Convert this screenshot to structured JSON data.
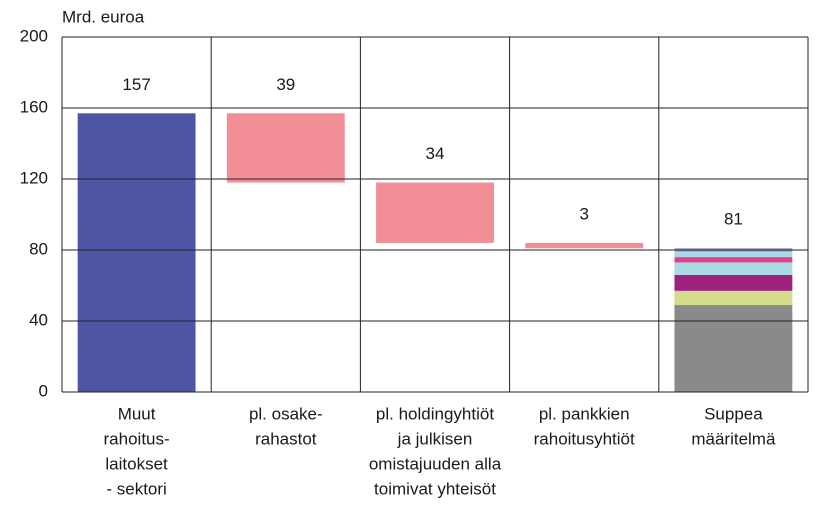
{
  "chart_data": {
    "type": "waterfall",
    "y_label": "Mrd. euroa",
    "categories": [
      [
        "Muut",
        "rahoitus-",
        "laitokset",
        "- sektori"
      ],
      [
        "pl. osake-",
        "rahastot"
      ],
      [
        "pl. holdingyhtiöt",
        "ja julkisen",
        "omistajuuden alla",
        "toimivat yhteisöt"
      ],
      [
        "pl. pankkien",
        "rahoitusyhtiöt"
      ],
      [
        "Suppea",
        "määritelmä"
      ]
    ],
    "values": [
      157,
      39,
      34,
      3,
      81
    ],
    "steps": [
      "total",
      "decrease",
      "decrease",
      "decrease",
      "total"
    ],
    "colors": {
      "total": "#4f55a5",
      "decrease": "#f28e96"
    },
    "segments": [
      {
        "color": "#8a8a8a",
        "value": 49
      },
      {
        "color": "#d4dc8a",
        "value": 8
      },
      {
        "color": "#a0207e",
        "value": 9
      },
      {
        "color": "#a8dbe6",
        "value": 7
      },
      {
        "color": "#e0408a",
        "value": 3
      },
      {
        "color": "#a8dbe6",
        "value": 3
      },
      {
        "color": "#9a9ad0",
        "value": 2
      }
    ],
    "ylim": [
      0,
      200
    ],
    "yticks": [
      0,
      40,
      80,
      120,
      160,
      200
    ],
    "grid": true
  }
}
